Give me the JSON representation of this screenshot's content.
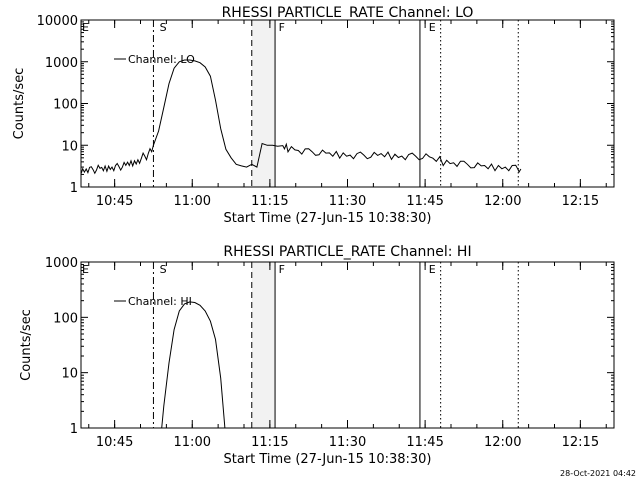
{
  "chart_data": [
    {
      "type": "line",
      "title": "RHESSI PARTICLE_RATE Channel: LO",
      "xlabel": "Start Time (27-Jun-15 10:38:30)",
      "ylabel": "Counts/sec",
      "yscale": "log",
      "ylim": [
        1,
        10000
      ],
      "xlim_min": [
        0,
        103
      ],
      "xticks": [
        {
          "t": 6.5,
          "label": "10:45"
        },
        {
          "t": 21.5,
          "label": "11:00"
        },
        {
          "t": 36.5,
          "label": "11:15"
        },
        {
          "t": 51.5,
          "label": "11:30"
        },
        {
          "t": 66.5,
          "label": "11:45"
        },
        {
          "t": 81.5,
          "label": "12:00"
        },
        {
          "t": 96.5,
          "label": "12:15"
        }
      ],
      "yticks": [
        {
          "v": 1,
          "label": "1"
        },
        {
          "v": 10,
          "label": "10"
        },
        {
          "v": 100,
          "label": "100"
        },
        {
          "v": 1000,
          "label": "1000"
        },
        {
          "v": 10000,
          "label": "10000"
        }
      ],
      "legend": "Channel: LO",
      "markers": [
        {
          "label": "E",
          "t": 0
        },
        {
          "label": "S",
          "t": 15
        },
        {
          "label": "F",
          "t": 38
        },
        {
          "label": "E",
          "t": 67
        }
      ],
      "vlines": [
        {
          "t": 14.0,
          "style": "dashdot"
        },
        {
          "t": 33.0,
          "style": "dashed"
        },
        {
          "t": 37.5,
          "style": "solid"
        },
        {
          "t": 65.5,
          "style": "solid"
        },
        {
          "t": 69.5,
          "style": "dotted"
        },
        {
          "t": 84.5,
          "style": "dotted"
        }
      ],
      "shaded": [
        {
          "from": 33.0,
          "to": 37.5
        }
      ],
      "series": [
        {
          "name": "Channel: LO",
          "x": [
            0,
            1,
            2,
            3,
            4,
            5,
            6,
            7,
            8,
            9,
            10,
            11,
            12,
            13,
            14,
            15,
            16,
            17,
            18,
            19,
            20,
            21,
            22,
            23,
            24,
            25,
            26,
            27,
            28,
            29,
            30,
            31,
            32,
            33,
            34,
            35,
            36,
            37,
            38,
            39,
            40,
            42,
            44,
            46,
            48,
            50,
            52,
            54,
            56,
            58,
            60,
            62,
            64,
            66,
            68,
            70,
            72,
            74,
            76,
            78,
            80,
            82,
            84,
            85
          ],
          "values": [
            2.5,
            2.7,
            2.6,
            2.8,
            2.7,
            2.9,
            3.0,
            3.1,
            3.3,
            3.6,
            3.9,
            4.5,
            5.5,
            7.0,
            10,
            22,
            80,
            300,
            700,
            1000,
            1100,
            1100,
            1050,
            950,
            750,
            450,
            120,
            25,
            8,
            5,
            3.5,
            3.2,
            3.0,
            3.5,
            3.0,
            11,
            10,
            10,
            9.5,
            9,
            8.5,
            7.5,
            7,
            6.5,
            6,
            6,
            5.8,
            5.8,
            5.7,
            5.8,
            5.6,
            5.5,
            5.5,
            5.3,
            4.5,
            4,
            3.8,
            3.5,
            3.2,
            3.0,
            3.0,
            3.0,
            2.8,
            2.7
          ]
        }
      ]
    },
    {
      "type": "line",
      "title": "RHESSI PARTICLE_RATE Channel: HI",
      "xlabel": "Start Time (27-Jun-15 10:38:30)",
      "ylabel": "Counts/sec",
      "yscale": "log",
      "ylim": [
        1,
        1000
      ],
      "xlim_min": [
        0,
        103
      ],
      "xticks": [
        {
          "t": 6.5,
          "label": "10:45"
        },
        {
          "t": 21.5,
          "label": "11:00"
        },
        {
          "t": 36.5,
          "label": "11:15"
        },
        {
          "t": 51.5,
          "label": "11:30"
        },
        {
          "t": 66.5,
          "label": "11:45"
        },
        {
          "t": 81.5,
          "label": "12:00"
        },
        {
          "t": 96.5,
          "label": "12:15"
        }
      ],
      "yticks": [
        {
          "v": 1,
          "label": "1"
        },
        {
          "v": 10,
          "label": "10"
        },
        {
          "v": 100,
          "label": "100"
        },
        {
          "v": 1000,
          "label": "1000"
        }
      ],
      "legend": "Channel: HI",
      "markers": [
        {
          "label": "E",
          "t": 0
        },
        {
          "label": "S",
          "t": 15
        },
        {
          "label": "F",
          "t": 38
        },
        {
          "label": "E",
          "t": 67
        }
      ],
      "vlines": [
        {
          "t": 14.0,
          "style": "dashdot"
        },
        {
          "t": 33.0,
          "style": "dashed"
        },
        {
          "t": 37.5,
          "style": "solid"
        },
        {
          "t": 65.5,
          "style": "solid"
        },
        {
          "t": 69.5,
          "style": "dotted"
        },
        {
          "t": 84.5,
          "style": "dotted"
        }
      ],
      "shaded": [
        {
          "from": 33.0,
          "to": 37.5
        }
      ],
      "series": [
        {
          "name": "Channel: HI",
          "x": [
            15.6,
            16,
            17,
            18,
            19,
            20,
            21,
            22,
            23,
            24,
            25,
            26,
            27,
            27.8
          ],
          "values": [
            1.0,
            2.5,
            15,
            60,
            130,
            175,
            190,
            185,
            165,
            130,
            85,
            40,
            8,
            1.0
          ]
        }
      ]
    }
  ],
  "timestamp": "28-Oct-2021 04:42"
}
